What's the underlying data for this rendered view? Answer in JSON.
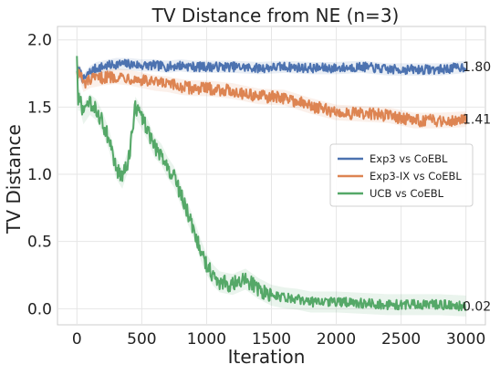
{
  "chart_data": {
    "type": "line",
    "title": "TV Distance from NE (n=3)",
    "xlabel": "Iteration",
    "ylabel": "TV Distance",
    "xlim": [
      -150,
      3150
    ],
    "ylim": [
      -0.12,
      2.1
    ],
    "xticks": [
      0,
      500,
      1000,
      1500,
      2000,
      2500,
      3000
    ],
    "yticks": [
      0.0,
      0.5,
      1.0,
      1.5,
      2.0
    ],
    "xtick_labels": [
      "0",
      "500",
      "1000",
      "1500",
      "2000",
      "2500",
      "3000"
    ],
    "ytick_labels": [
      "0.0",
      "0.5",
      "1.0",
      "1.5",
      "2.0"
    ],
    "grid": true,
    "legend_position": "right",
    "series": [
      {
        "name": "Exp3 vs CoEBL",
        "color": "#4c72b0",
        "final_label": "1.80",
        "x": [
          0,
          25,
          50,
          100,
          150,
          200,
          300,
          400,
          500,
          600,
          700,
          800,
          900,
          1000,
          1200,
          1400,
          1600,
          1800,
          2000,
          2200,
          2400,
          2600,
          2800,
          3000
        ],
        "values": [
          1.77,
          1.76,
          1.7,
          1.76,
          1.79,
          1.8,
          1.82,
          1.82,
          1.81,
          1.81,
          1.8,
          1.81,
          1.8,
          1.8,
          1.8,
          1.79,
          1.8,
          1.79,
          1.79,
          1.8,
          1.78,
          1.78,
          1.78,
          1.8
        ]
      },
      {
        "name": "Exp3-IX vs CoEBL",
        "color": "#dd8452",
        "final_label": "1.41",
        "x": [
          0,
          25,
          50,
          100,
          150,
          200,
          300,
          400,
          500,
          600,
          700,
          800,
          900,
          1000,
          1200,
          1400,
          1600,
          1800,
          2000,
          2200,
          2400,
          2600,
          2800,
          3000
        ],
        "values": [
          1.76,
          1.75,
          1.67,
          1.7,
          1.71,
          1.72,
          1.73,
          1.72,
          1.7,
          1.68,
          1.67,
          1.65,
          1.64,
          1.64,
          1.62,
          1.58,
          1.57,
          1.51,
          1.46,
          1.45,
          1.44,
          1.4,
          1.4,
          1.41
        ]
      },
      {
        "name": "UCB vs CoEBL",
        "color": "#55a868",
        "final_label": "0.02",
        "x": [
          0,
          10,
          25,
          50,
          100,
          150,
          200,
          250,
          300,
          350,
          400,
          450,
          500,
          550,
          600,
          650,
          700,
          750,
          800,
          850,
          900,
          950,
          1000,
          1050,
          1100,
          1200,
          1300,
          1400,
          1500,
          1600,
          1700,
          1800,
          2000,
          2200,
          2400,
          2600,
          2800,
          3000
        ],
        "values": [
          1.88,
          1.55,
          1.55,
          1.45,
          1.52,
          1.48,
          1.38,
          1.25,
          1.05,
          0.97,
          1.12,
          1.5,
          1.42,
          1.32,
          1.2,
          1.15,
          1.05,
          0.98,
          0.85,
          0.72,
          0.6,
          0.45,
          0.33,
          0.25,
          0.2,
          0.18,
          0.22,
          0.15,
          0.1,
          0.08,
          0.07,
          0.05,
          0.05,
          0.04,
          0.03,
          0.03,
          0.03,
          0.02
        ]
      }
    ]
  }
}
